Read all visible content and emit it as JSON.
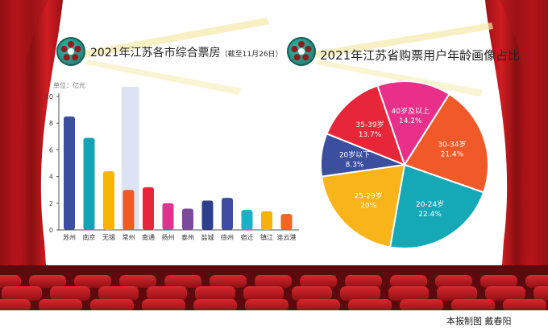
{
  "left_chart": {
    "title": "2021年江苏各市综合票房",
    "subtitle": "（截至11月26日）",
    "unit": "单位：亿元"
  },
  "right_chart": {
    "title": "2021年江苏省购票用户年龄画像占比"
  },
  "credit": "本报制图  戴春阳",
  "chart_data": [
    {
      "type": "bar",
      "title": "2021年江苏各市综合票房",
      "subtitle": "（截至11月26日）",
      "ylabel": "单位：亿元",
      "ylim": [
        0,
        10
      ],
      "yticks": [
        0,
        2,
        4,
        6,
        8,
        10
      ],
      "grid": false,
      "categories": [
        "苏州",
        "南京",
        "无锡",
        "常州",
        "南通",
        "扬州",
        "泰州",
        "盐城",
        "徐州",
        "宿迁",
        "镇江",
        "连云港"
      ],
      "values": [
        8.5,
        6.9,
        4.4,
        3.0,
        3.2,
        2.0,
        1.6,
        2.2,
        2.4,
        1.5,
        1.4,
        1.2
      ],
      "colors": [
        "#3c4e9e",
        "#13a3b4",
        "#f7b500",
        "#f15a24",
        "#e8263b",
        "#e0338f",
        "#7c4a9a",
        "#2c3e8c",
        "#3d4c9e",
        "#16b3c6",
        "#f5b20a",
        "#f26522"
      ],
      "highlight_category": "常州",
      "highlight_color": "#dde3f3"
    },
    {
      "type": "pie",
      "title": "2021年江苏省购票用户年龄画像占比",
      "labels": [
        "40岁及以上",
        "30-34岁",
        "20-24岁",
        "25-29岁",
        "20岁以下",
        "35-39岁"
      ],
      "values": [
        14.2,
        21.4,
        22.4,
        20,
        8.3,
        13.7
      ],
      "display_values": [
        "14.2%",
        "21.4%",
        "22.4%",
        "20%",
        "8.3%",
        "13.7%"
      ],
      "colors": [
        "#e82f8a",
        "#f05a28",
        "#15a8b7",
        "#f8b418",
        "#3c4e9e",
        "#e8263a"
      ]
    }
  ]
}
